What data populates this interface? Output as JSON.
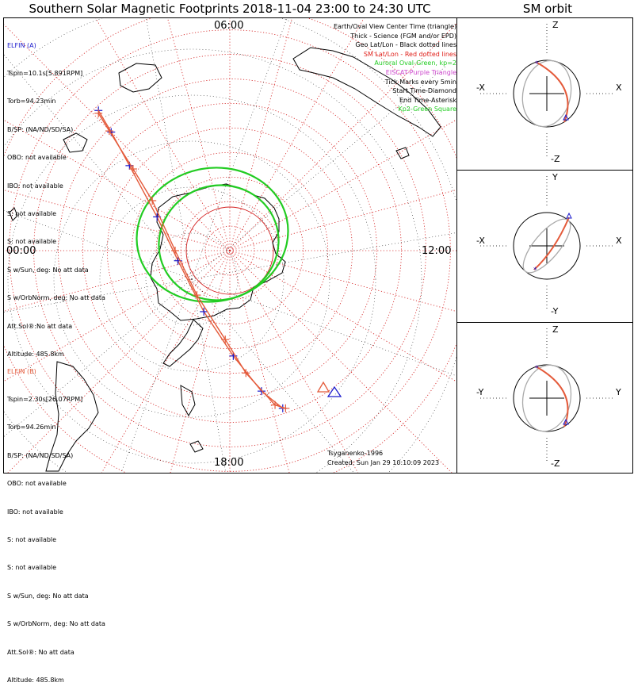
{
  "title": "Southern Solar Magnetic Footprints 2018-11-04 23:00 to 24:30 UTC",
  "orbit_title": "SM orbit",
  "colors": {
    "elfin_a": "#1a1acc",
    "elfin_b": "#e45a3a",
    "red_grid": "#d41e1e",
    "auroral": "#22cc22",
    "orbit_gray": "#aaaaaa",
    "frame": "#000000"
  },
  "elfin_a": {
    "name": "ELFIN (A)",
    "lines": [
      "Tspin=10.1s[5.891RPM]",
      "Torb=94.23min",
      "B/SP: (NA/ND/SD/SA)",
      "OBO: not available",
      "IBO: not available",
      "S: not available",
      "S: not available",
      "S w/Sun, deg: No att data",
      "S w/OrbNorm, deg: No att data",
      "Att.Sol®:No att data",
      "Altitude: 485.8km"
    ]
  },
  "elfin_b": {
    "name": "ELFIN (B)",
    "lines": [
      "Tspin=2.30s[26.07RPM]",
      "Torb=94.26min",
      "B/SP: (NA/ND/SD/SA)",
      "OBO: not available",
      "IBO: not available",
      "S: not available",
      "S: not available",
      "S w/Sun, deg: No att data",
      "S w/OrbNorm, deg: No att data",
      "Att.Sol®: No att data",
      "Altitude: 485.8km"
    ]
  },
  "legend": {
    "l1": "Earth/Oval View Center Time (triangle)",
    "l2": "Thick - Science (FGM and/or EPD)",
    "l3": "Geo Lat/Lon - Black dotted lines",
    "l4": "SM Lat/Lon - Red dotted lines",
    "l5": "Auroral Oval-Green, kp=2",
    "l6": "EISCAT-Purple Triangle",
    "l7": "Tick Marks every 5min",
    "l8": "Start Time-Diamond",
    "l9": "End Time-Asterisk",
    "l10": "Kp2-Green Square"
  },
  "hour_labels": {
    "top": "06:00",
    "left": "00:00",
    "right": "12:00",
    "bottom": "18:00"
  },
  "credits": {
    "model": "Tsyganenko-1996",
    "created": "Created: Sun Jan 29 10:10:09 2023"
  },
  "orbit_panels": [
    {
      "top": "Z",
      "bottom": "-Z",
      "left": "-X",
      "right": "X"
    },
    {
      "top": "Y",
      "bottom": "-Y",
      "left": "-X",
      "right": "X"
    },
    {
      "top": "Z",
      "bottom": "-Z",
      "left": "-Y",
      "right": "Y"
    }
  ],
  "chart_data": {
    "type": "polar",
    "title": "Southern Solar Magnetic Footprints 2018-11-04 23:00 to 24:30 UTC",
    "center": "SM south magnetic pole",
    "radial_rings": 9,
    "mlt_ticks": [
      "00:00",
      "06:00",
      "12:00",
      "18:00"
    ],
    "tick_interval_min": 5,
    "tracks": [
      {
        "name": "ELFIN (A)",
        "color": "#1a1acc",
        "footprint": [
          [
            -0.834,
            -0.889
          ],
          [
            -0.753,
            -0.752
          ],
          [
            -0.637,
            -0.539
          ],
          [
            -0.462,
            -0.214
          ],
          [
            -0.329,
            0.064
          ],
          [
            -0.165,
            0.387
          ],
          [
            0.022,
            0.668
          ],
          [
            0.201,
            0.891
          ],
          [
            0.336,
            1.0
          ]
        ]
      },
      {
        "name": "ELFIN (B)",
        "color": "#e45a3a",
        "footprint": [
          [
            -0.834,
            -0.871
          ],
          [
            -0.765,
            -0.759
          ],
          [
            -0.614,
            -0.518
          ],
          [
            -0.492,
            -0.317
          ],
          [
            -0.347,
            0.0
          ],
          [
            -0.209,
            0.282
          ],
          [
            -0.029,
            0.564
          ],
          [
            0.102,
            0.776
          ],
          [
            0.287,
            0.979
          ],
          [
            0.354,
            1.0
          ]
        ]
      }
    ],
    "auroral_oval": {
      "kp": 2,
      "color": "#22cc22"
    },
    "sm_orbit_panels": [
      {
        "axes": [
          "X",
          "Z"
        ]
      },
      {
        "axes": [
          "X",
          "Y"
        ]
      },
      {
        "axes": [
          "Y",
          "Z"
        ]
      }
    ]
  }
}
